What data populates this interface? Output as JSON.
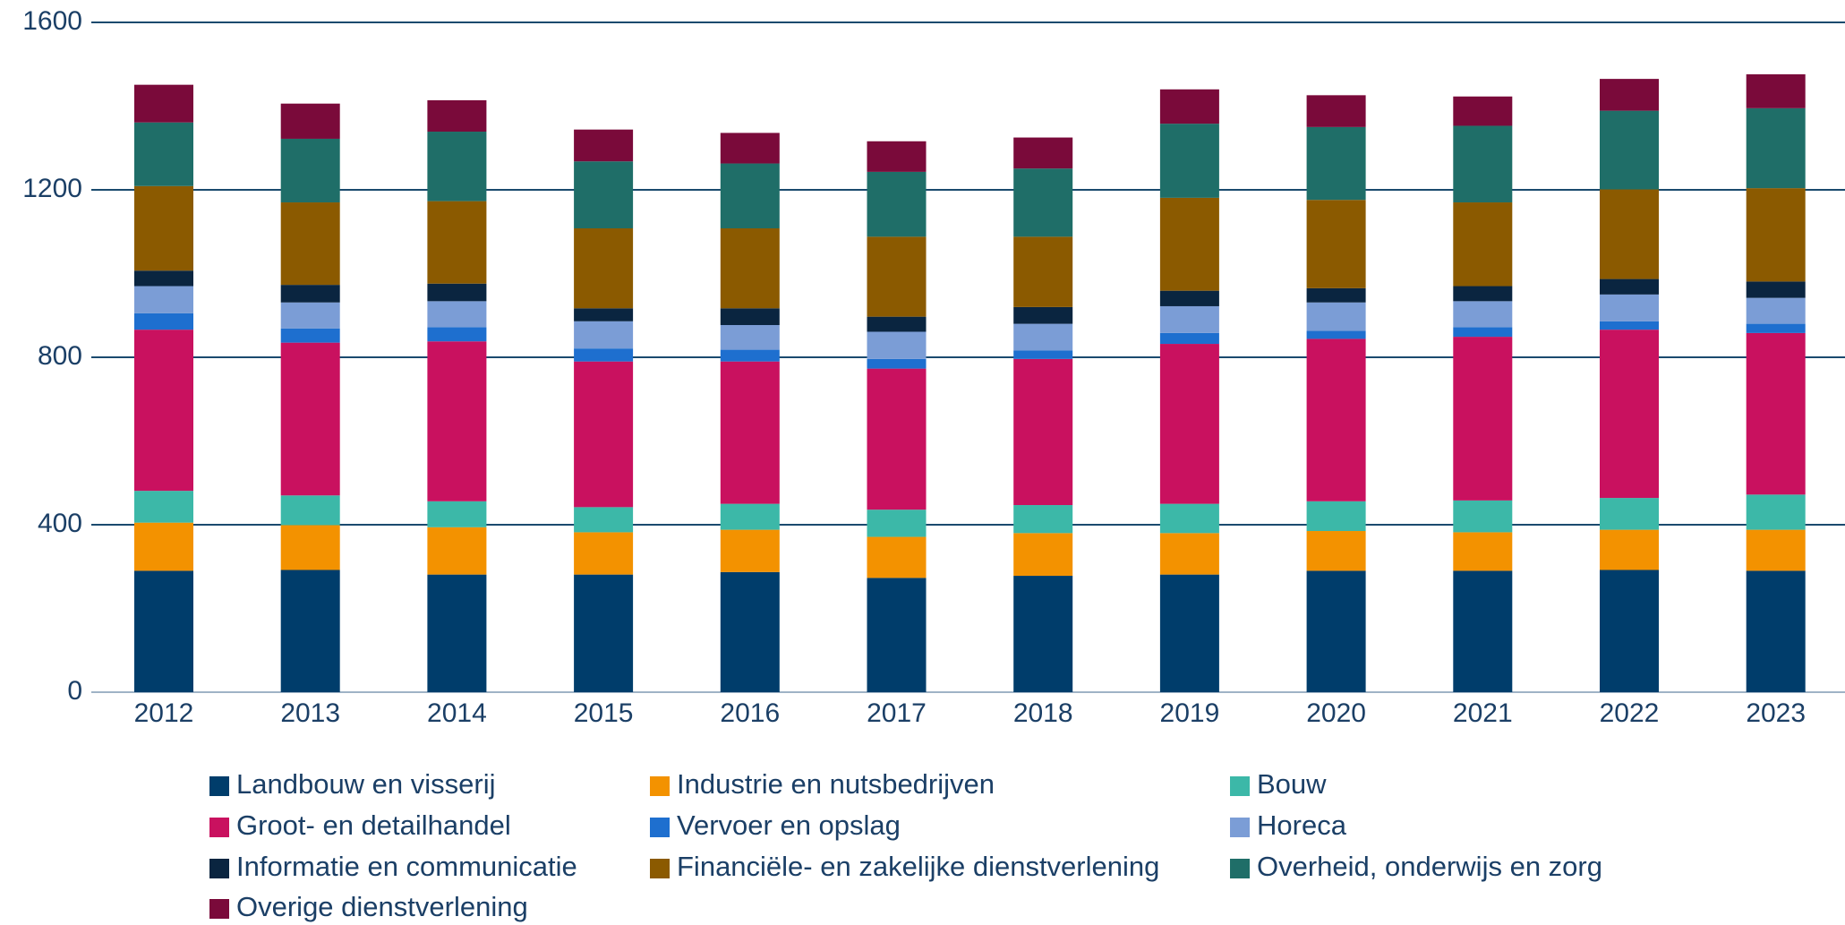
{
  "chart_data": {
    "type": "stacked_bar",
    "categories": [
      "2012",
      "2013",
      "2014",
      "2015",
      "2016",
      "2017",
      "2018",
      "2019",
      "2020",
      "2021",
      "2022",
      "2023"
    ],
    "ylim": [
      0,
      1600
    ],
    "yticks": [
      0,
      400,
      800,
      1200,
      1600
    ],
    "grid": true,
    "legend": "bottom",
    "series": [
      {
        "name": "Landbouw en visserij",
        "color": "#003d6b",
        "values": [
          290,
          292,
          281,
          281,
          287,
          273,
          278,
          281,
          290,
          290,
          292,
          290
        ]
      },
      {
        "name": "Industrie en nutsbedrijven",
        "color": "#f39200",
        "values": [
          115,
          107,
          113,
          101,
          101,
          98,
          102,
          99,
          95,
          92,
          96,
          98
        ]
      },
      {
        "name": "Bouw",
        "color": "#3cb8a8",
        "values": [
          76,
          71,
          62,
          60,
          62,
          65,
          67,
          70,
          71,
          76,
          76,
          84
        ]
      },
      {
        "name": "Groot- en detailhandel",
        "color": "#c9115f",
        "values": [
          385,
          365,
          382,
          348,
          340,
          337,
          349,
          382,
          388,
          391,
          402,
          386
        ]
      },
      {
        "name": "Vervoer en opslag",
        "color": "#1e6fcf",
        "values": [
          39,
          34,
          34,
          31,
          28,
          23,
          20,
          26,
          19,
          23,
          20,
          22
        ]
      },
      {
        "name": "Horeca",
        "color": "#7b9dd6",
        "values": [
          65,
          62,
          62,
          65,
          59,
          65,
          64,
          64,
          68,
          62,
          64,
          62
        ]
      },
      {
        "name": "Informatie en communicatie",
        "color": "#0a2540",
        "values": [
          37,
          42,
          42,
          31,
          40,
          36,
          40,
          37,
          34,
          36,
          37,
          39
        ]
      },
      {
        "name": "Financiële- en zakelijke dienstverlening",
        "color": "#8b5a00",
        "values": [
          202,
          197,
          197,
          191,
          191,
          191,
          168,
          222,
          211,
          200,
          214,
          223
        ]
      },
      {
        "name": "Overheid, onderwijs en zorg",
        "color": "#1f6e68",
        "values": [
          152,
          152,
          166,
          160,
          155,
          155,
          163,
          177,
          174,
          183,
          188,
          191
        ]
      },
      {
        "name": "Overige dienstverlening",
        "color": "#7a0a3a",
        "values": [
          90,
          84,
          75,
          76,
          73,
          73,
          74,
          82,
          76,
          70,
          76,
          81
        ]
      }
    ]
  }
}
